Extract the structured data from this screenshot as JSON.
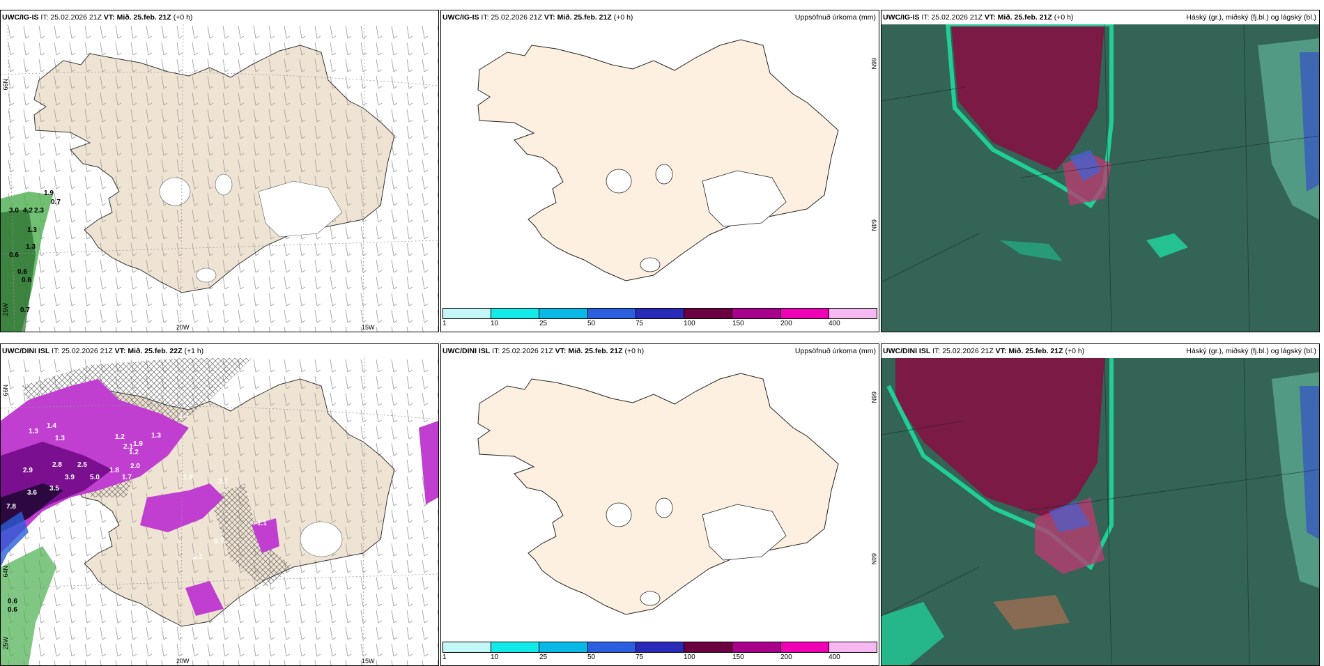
{
  "panels": [
    {
      "model": "UWC/IG-IS",
      "it_label": "IT:",
      "it": "25.02.2026 21Z",
      "vt_label": "VT:",
      "vt": "Mið. 25.feb. 21Z",
      "lead": "(+0 h)",
      "product": "",
      "lat_labels": [
        "66N",
        "64N"
      ],
      "lon_labels": [
        "25W",
        "20W",
        "15W"
      ],
      "values": [
        "1.9",
        "0.7",
        "3.0",
        "4.2",
        "2.3",
        "1.3",
        "1.3",
        "0.6",
        "0.6",
        "0.6",
        "0.7"
      ]
    },
    {
      "model": "UWC/IG-IS",
      "it_label": "IT:",
      "it": "25.02.2026 21Z",
      "vt_label": "VT:",
      "vt": "Mið. 25.feb. 21Z",
      "lead": "(+0 h)",
      "product": "Uppsöfnuð úrkoma (mm)",
      "lat_labels": [
        "66N",
        "64N"
      ]
    },
    {
      "model": "UWC/IG-IS",
      "it_label": "IT:",
      "it": "25.02.2026 21Z",
      "vt_label": "VT:",
      "vt": "Mið. 25.feb. 21Z",
      "lead": "(+0 h)",
      "product": "Háský (gr.), miðský (fj.bl.) og lágský (bl.)"
    },
    {
      "model": "UWC/DINI ISL",
      "it_label": "IT:",
      "it": "25.02.2026 21Z",
      "vt_label": "VT:",
      "vt": "Mið. 25.feb. 22Z",
      "lead": "(+1 h)",
      "product": "",
      "lat_labels": [
        "66N",
        "64N"
      ],
      "lon_labels": [
        "25W",
        "20W",
        "15W"
      ],
      "values": [
        "1.3",
        "1.4",
        "1.3",
        "1.2",
        "2.9",
        "2.8",
        "2.5",
        "3.9",
        "5.0",
        "3.6",
        "3.5",
        "7.8",
        "1.2",
        "2.1",
        "1.9",
        "2.0",
        "1.8",
        "1.7",
        "1.4",
        "1.3",
        "2.7",
        "1.9",
        "2.1",
        "0.7",
        "1.1",
        "0.6",
        "0.6"
      ]
    },
    {
      "model": "UWC/DINI ISL",
      "it_label": "IT:",
      "it": "25.02.2026 21Z",
      "vt_label": "VT:",
      "vt": "Mið. 25.feb. 21Z",
      "lead": "(+0 h)",
      "product": "Uppsöfnuð úrkoma (mm)",
      "lat_labels": [
        "66N",
        "64N"
      ]
    },
    {
      "model": "UWC/DINI ISL",
      "it_label": "IT:",
      "it": "25.02.2026 21Z",
      "vt_label": "VT:",
      "vt": "Mið. 25.feb. 21Z",
      "lead": "(+0 h)",
      "product": "Háský (gr.), miðský (fj.bl.) og lágský (bl.)"
    }
  ],
  "colorbar": {
    "labels": [
      "1",
      "10",
      "25",
      "50",
      "75",
      "100",
      "150",
      "200",
      "400"
    ],
    "colors": [
      "#c4f8f8",
      "#14e9e9",
      "#0ab8e6",
      "#2c5fe0",
      "#2a2ab8",
      "#6b0040",
      "#a8008a",
      "#f000b4",
      "#f6b8f0"
    ]
  }
}
